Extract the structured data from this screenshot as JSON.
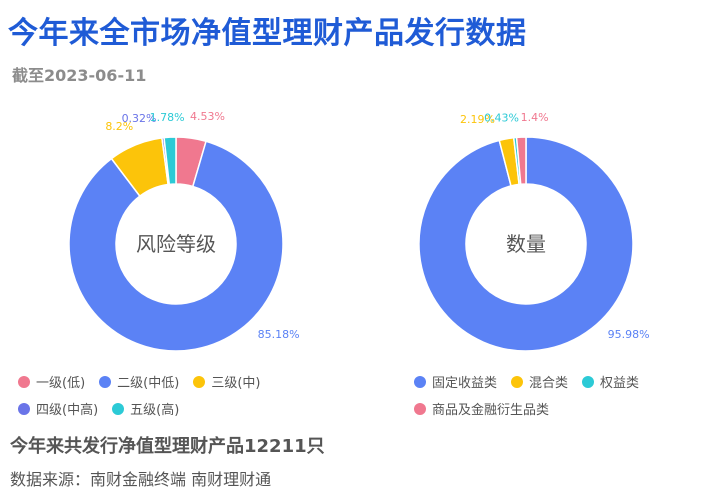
{
  "header": {
    "title": "今年来全市场净值型理财产品发行数据",
    "subtitle": "截至2023-06-11"
  },
  "chart_data": [
    {
      "type": "pie",
      "donut": true,
      "center_label": "风险等级",
      "slices": [
        {
          "label": "一级(低)",
          "value": 4.53,
          "display": "4.53%",
          "color": "#f0788f"
        },
        {
          "label": "二级(中低)",
          "value": 85.18,
          "display": "85.18%",
          "color": "#5b82f5"
        },
        {
          "label": "三级(中)",
          "value": 8.2,
          "display": "8.2%",
          "color": "#fcc40a"
        },
        {
          "label": "四级(中高)",
          "value": 0.32,
          "display": "0.32%",
          "color": "#6a74e8"
        },
        {
          "label": "五级(高)",
          "value": 1.78,
          "display": "1.78%",
          "color": "#2ccad6"
        }
      ]
    },
    {
      "type": "pie",
      "donut": true,
      "center_label": "数量",
      "slices": [
        {
          "label": "固定收益类",
          "value": 95.98,
          "display": "95.98%",
          "color": "#5b82f5"
        },
        {
          "label": "混合类",
          "value": 2.19,
          "display": "2.19%",
          "color": "#fcc40a"
        },
        {
          "label": "权益类",
          "value": 0.43,
          "display": "0.43%",
          "color": "#2ccad6"
        },
        {
          "label": "商品及金融衍生品类",
          "value": 1.4,
          "display": "1.4%",
          "color": "#f0788f"
        }
      ]
    }
  ],
  "footer": {
    "summary": "今年来共发行净值型理财产品12211只",
    "source": "数据来源：南财金融终端 南财理财通"
  }
}
